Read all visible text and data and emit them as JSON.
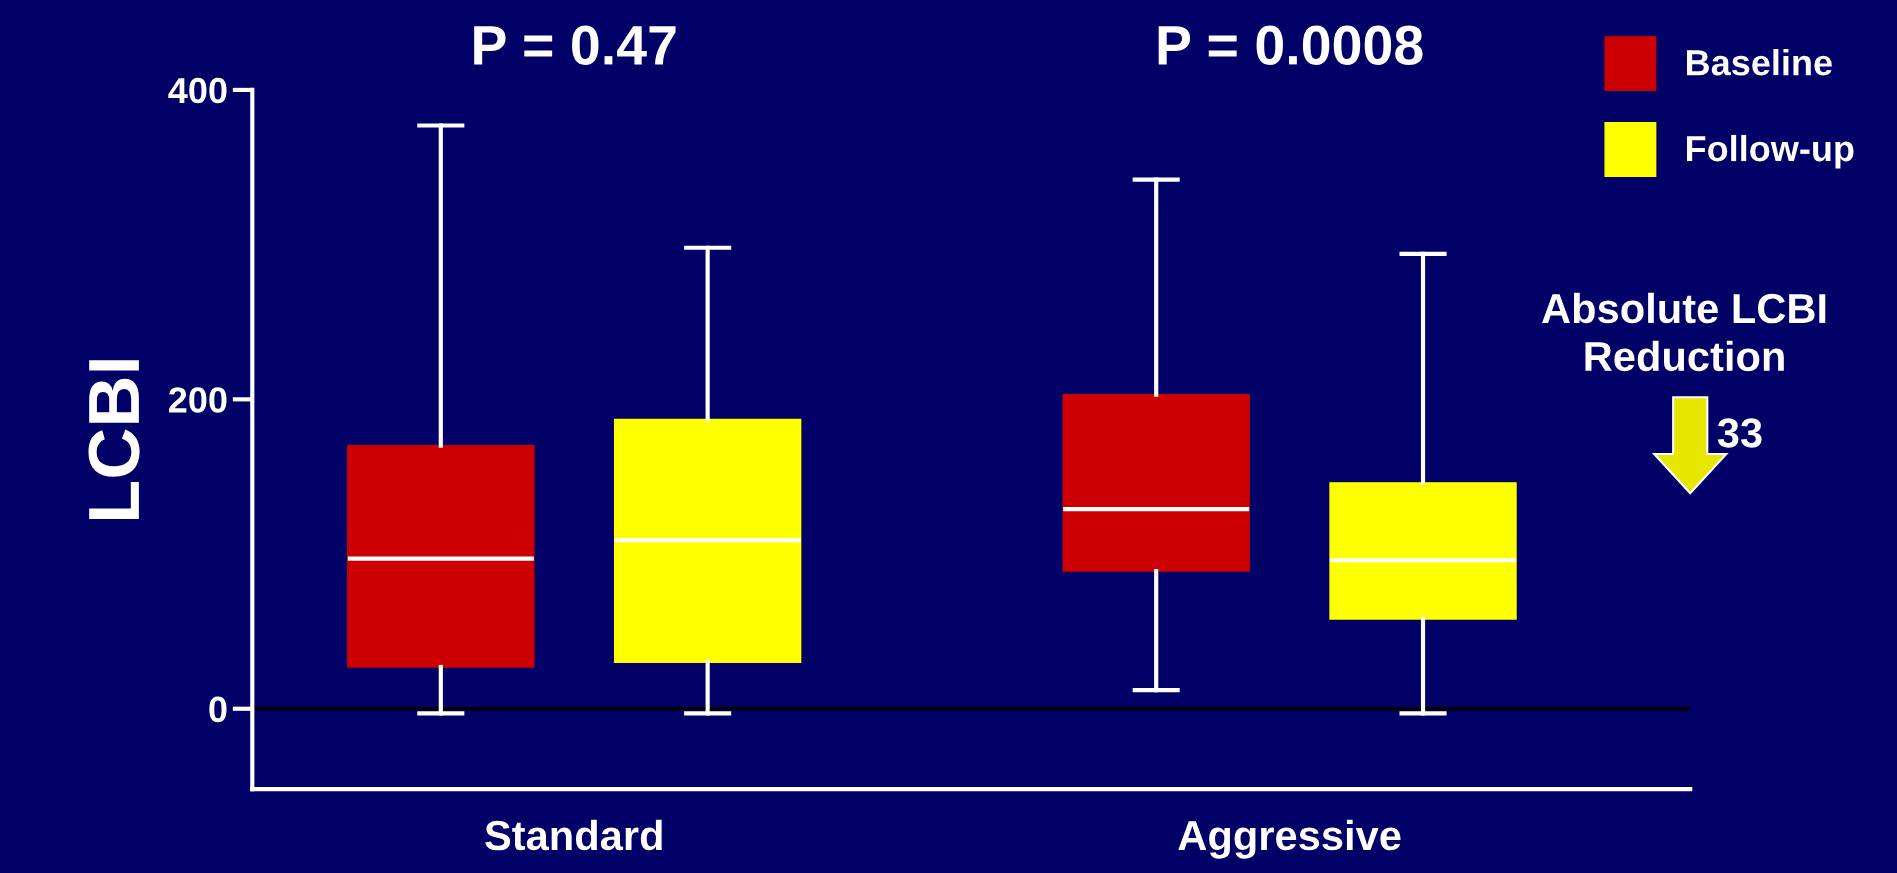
{
  "chart_data": {
    "type": "box",
    "categories": [
      "Standard",
      "Aggressive"
    ],
    "ylabel": "LCBI",
    "series": [
      {
        "name": "Baseline",
        "color": "#cc0000",
        "boxes": [
          {
            "low": -3,
            "q1": 27,
            "median": 97,
            "q3": 170,
            "high": 377
          },
          {
            "low": 12,
            "q1": 89,
            "median": 129,
            "q3": 203,
            "high": 342
          }
        ]
      },
      {
        "name": "Follow-up",
        "color": "#ffff00",
        "boxes": [
          {
            "low": -3,
            "q1": 30,
            "median": 109,
            "q3": 187,
            "high": 298
          },
          {
            "low": -3,
            "q1": 58,
            "median": 96,
            "q3": 146,
            "high": 294
          }
        ]
      }
    ],
    "ylim": [
      -52,
      400
    ],
    "yticks": [
      0,
      200,
      400
    ],
    "grid": false,
    "legend": "top right",
    "ref_lines": [
      {
        "axis": "y",
        "value": 0,
        "color": "#000000"
      }
    ],
    "annotations": [
      "P = 0.47",
      "P = 0.0008",
      "Absolute LCBI\nReduction",
      "33"
    ]
  }
}
